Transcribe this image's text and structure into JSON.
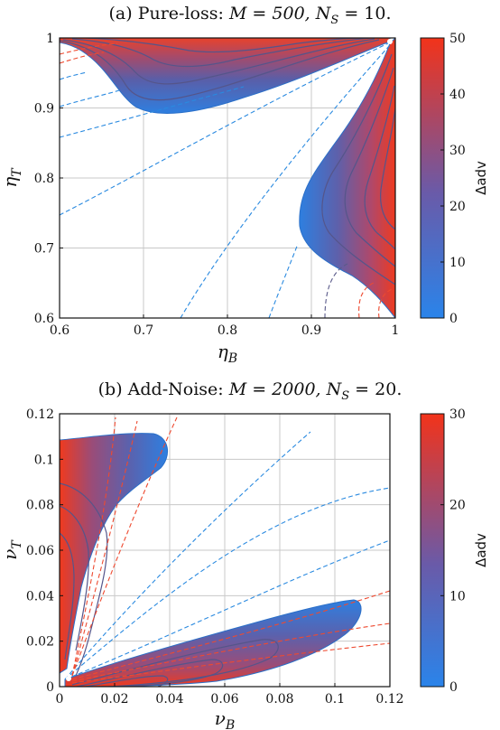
{
  "chart_data": [
    {
      "type": "heatmap",
      "title": "(a) Pure-loss: M = 500, N_S = 10.",
      "title_text": "(a) Pure-loss:",
      "title_math": "M = 500, N",
      "title_sub": "S",
      "title_tail": " = 10.",
      "xlabel": "η",
      "xlabel_sub": "B",
      "ylabel": "η",
      "ylabel_sub": "T",
      "xlim": [
        0.6,
        1.0
      ],
      "ylim": [
        0.6,
        1.0
      ],
      "xticks": [
        "0.6",
        "0.7",
        "0.8",
        "0.9",
        "1"
      ],
      "yticks": [
        "0.6",
        "0.7",
        "0.8",
        "0.9",
        "1"
      ],
      "xtick_values": [
        0.6,
        0.7,
        0.8,
        0.9,
        1.0
      ],
      "ytick_values": [
        0.6,
        0.7,
        0.8,
        0.9,
        1.0
      ],
      "grid": true,
      "colorbar": {
        "label": "Δadv",
        "min": 0,
        "max": 50,
        "ticks": [
          "0",
          "10",
          "20",
          "30",
          "40",
          "50"
        ],
        "tick_values": [
          0,
          10,
          20,
          30,
          40,
          50
        ]
      },
      "regions": [
        {
          "name": "upper-left lobe",
          "boundary": [
            [
              0.6,
              0.995
            ],
            [
              0.66,
              0.985
            ],
            [
              0.69,
              0.955
            ],
            [
              0.72,
              0.905
            ],
            [
              0.76,
              0.89
            ],
            [
              0.82,
              0.905
            ],
            [
              0.88,
              0.935
            ],
            [
              0.94,
              0.965
            ],
            [
              0.99,
              0.995
            ]
          ]
        },
        {
          "name": "right lobe",
          "boundary": [
            [
              0.995,
              0.99
            ],
            [
              0.97,
              0.93
            ],
            [
              0.93,
              0.86
            ],
            [
              0.91,
              0.8
            ],
            [
              0.905,
              0.75
            ],
            [
              0.93,
              0.71
            ],
            [
              0.96,
              0.66
            ],
            [
              0.99,
              0.61
            ],
            [
              1.0,
              0.6
            ]
          ]
        }
      ],
      "colors": {
        "low": "#2c7fe4",
        "mid": "#6b5dab",
        "high": "#f0321c",
        "contour": "#5a5a8a",
        "dashed": "#2a8ae0"
      }
    },
    {
      "type": "heatmap",
      "title": "(b) Add-Noise: M = 2000, N_S = 20.",
      "title_text": "(b) Add-Noise:",
      "title_math": "M = 2000, N",
      "title_sub": "S",
      "title_tail": " = 20.",
      "xlabel": "ν",
      "xlabel_sub": "B",
      "ylabel": "ν",
      "ylabel_sub": "T",
      "xlim": [
        0,
        0.12
      ],
      "ylim": [
        0,
        0.12
      ],
      "xticks": [
        "0",
        "0.02",
        "0.04",
        "0.06",
        "0.08",
        "0.1",
        "0.12"
      ],
      "yticks": [
        "0",
        "0.02",
        "0.04",
        "0.06",
        "0.08",
        "0.1",
        "0.12"
      ],
      "xtick_values": [
        0,
        0.02,
        0.04,
        0.06,
        0.08,
        0.1,
        0.12
      ],
      "ytick_values": [
        0,
        0.02,
        0.04,
        0.06,
        0.08,
        0.1,
        0.12
      ],
      "grid": true,
      "colorbar": {
        "label": "Δadv",
        "min": 0,
        "max": 30,
        "ticks": [
          "0",
          "10",
          "20",
          "30"
        ],
        "tick_values": [
          0,
          10,
          20,
          30
        ]
      },
      "regions": [
        {
          "name": "upper-left lobe",
          "boundary": [
            [
              0,
              0.108
            ],
            [
              0.01,
              0.11
            ],
            [
              0.03,
              0.108
            ],
            [
              0.036,
              0.1
            ],
            [
              0.025,
              0.088
            ],
            [
              0.012,
              0.07
            ],
            [
              0.005,
              0.05
            ],
            [
              0.001,
              0.02
            ]
          ]
        },
        {
          "name": "lower-right lobe",
          "boundary": [
            [
              0.002,
              0.001
            ],
            [
              0.02,
              0.01
            ],
            [
              0.05,
              0.022
            ],
            [
              0.08,
              0.033
            ],
            [
              0.1,
              0.038
            ],
            [
              0.11,
              0.032
            ],
            [
              0.09,
              0.018
            ],
            [
              0.06,
              0.006
            ],
            [
              0.03,
              0.001
            ]
          ]
        }
      ],
      "colors": {
        "low": "#2c7fe4",
        "mid": "#6b5dab",
        "high": "#f0321c",
        "contour": "#5a5a8a",
        "dashed": "#2a8ae0"
      }
    }
  ]
}
